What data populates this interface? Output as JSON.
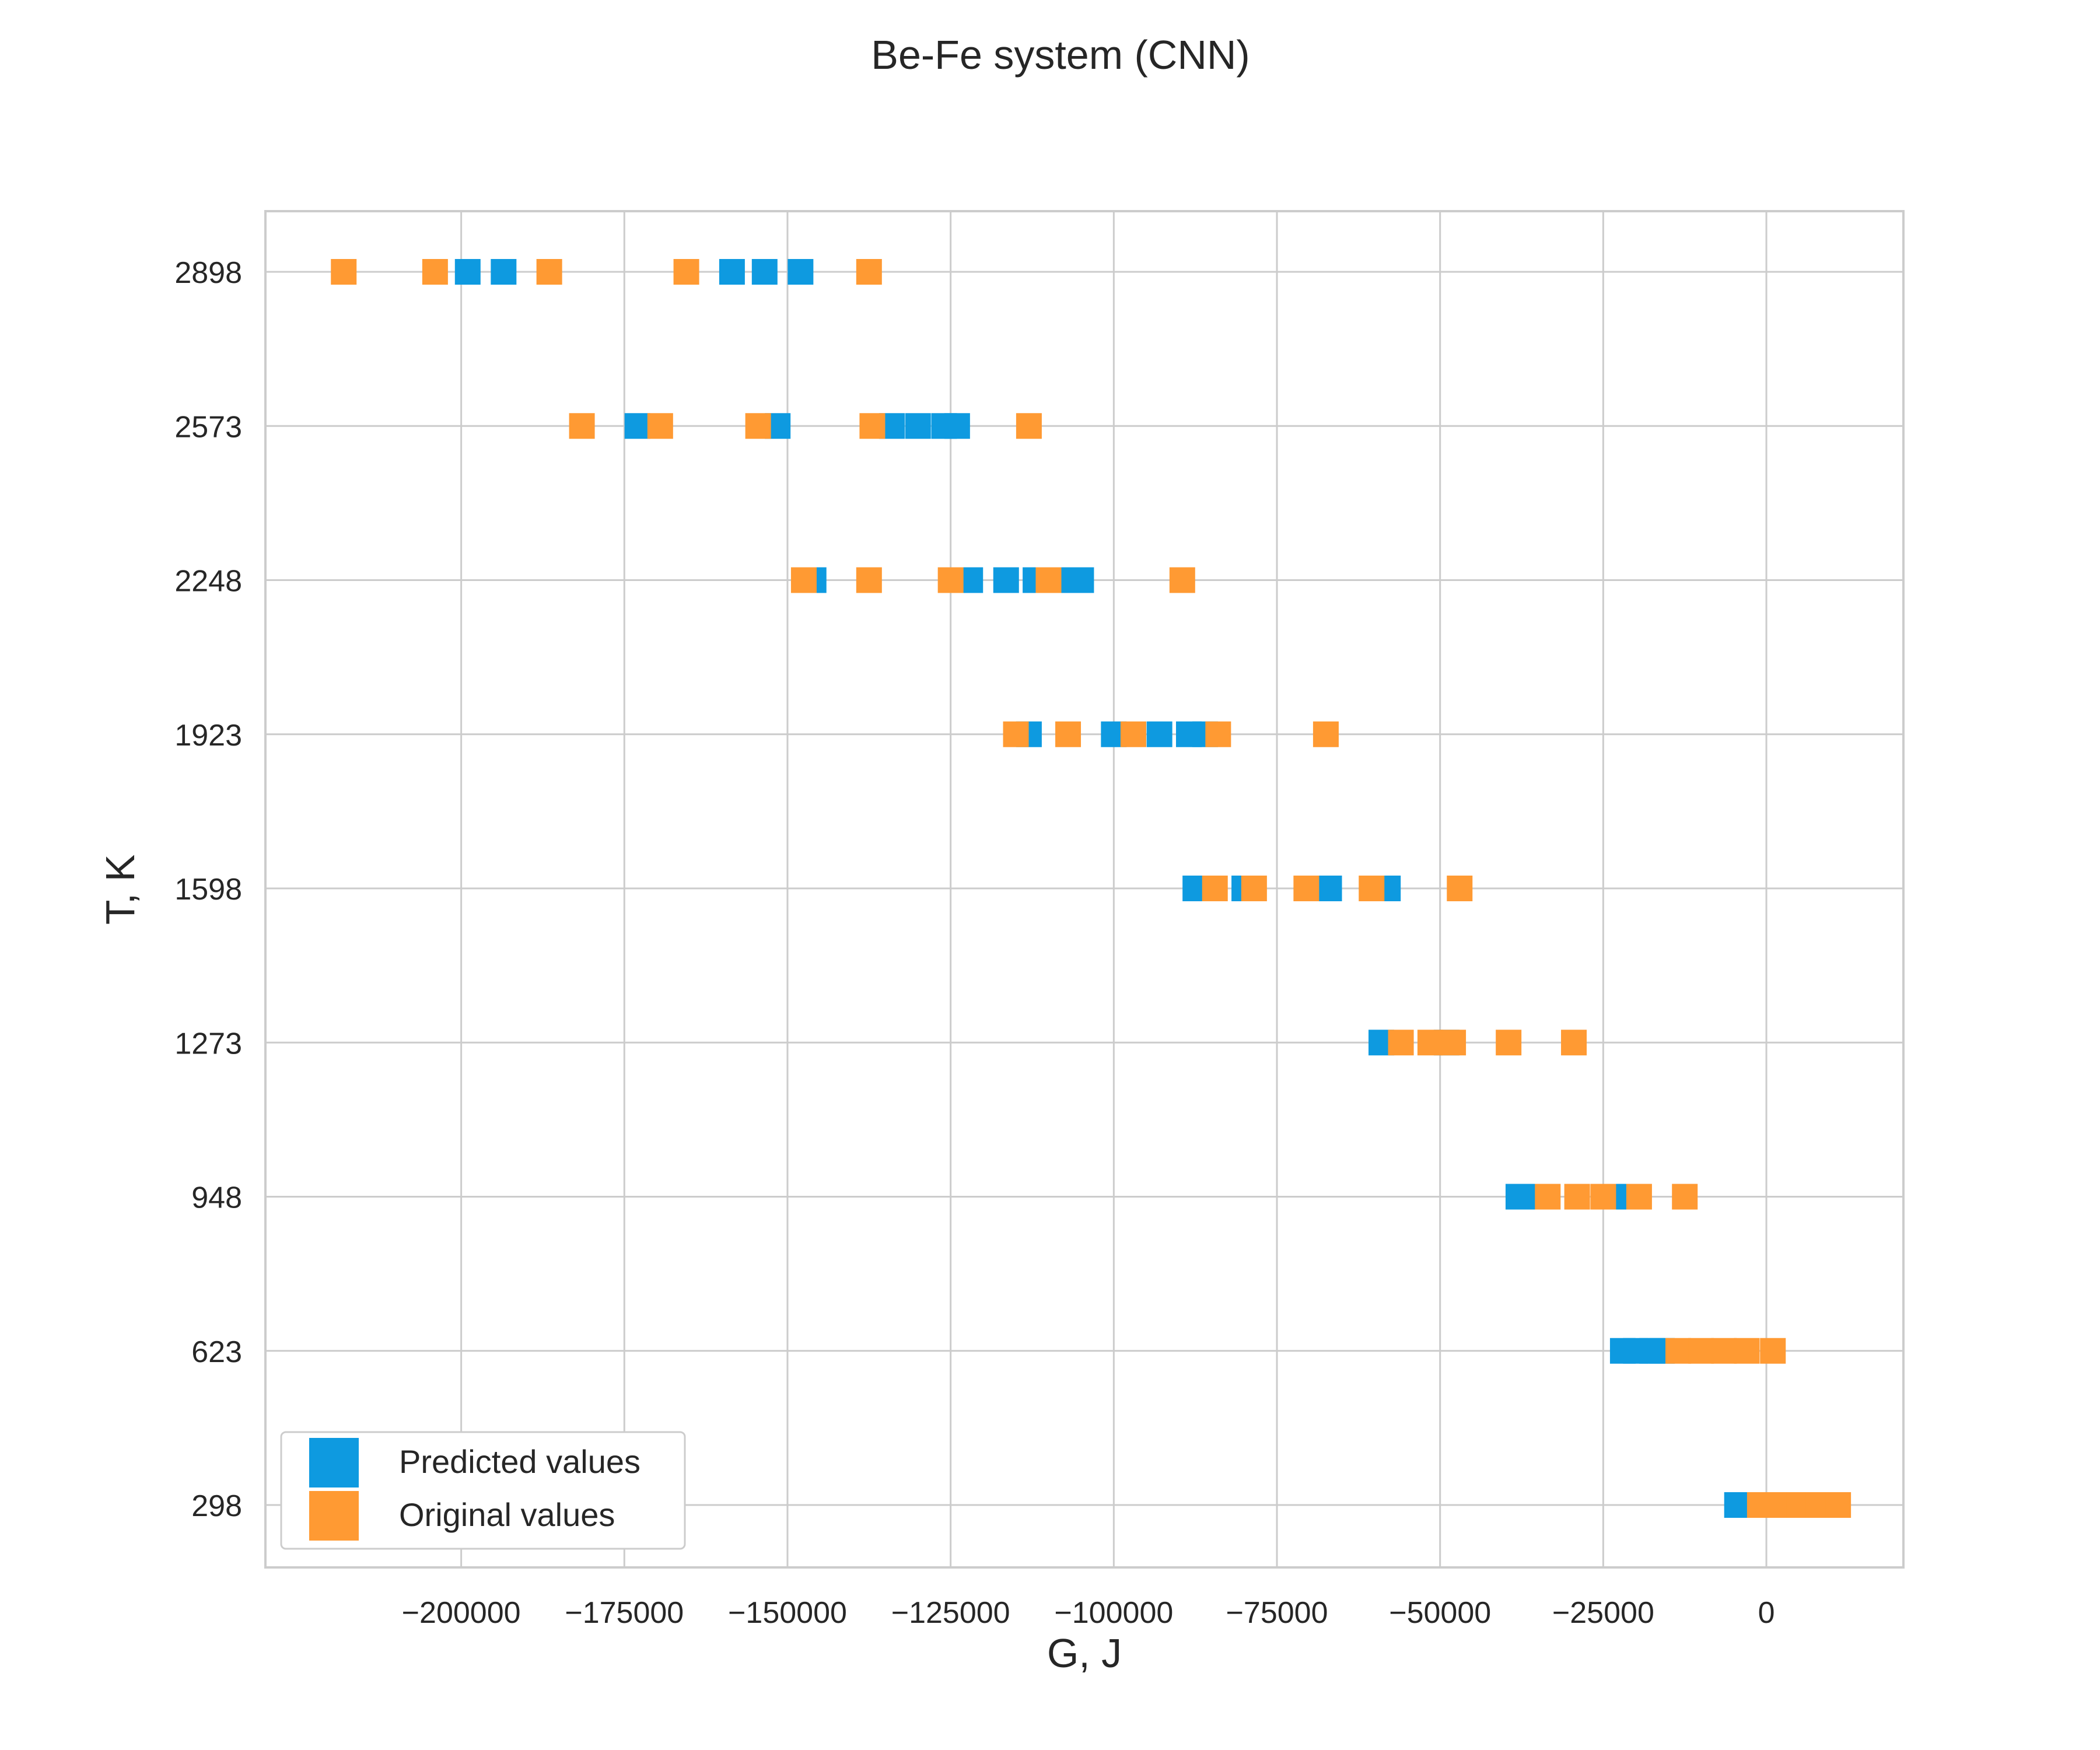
{
  "colors": {
    "predicted": "#0e9ae0",
    "original": "#ff9a33",
    "grid": "#cccccc",
    "frame": "#cccccc"
  },
  "chart_data": {
    "type": "scatter",
    "title": "Be-Fe system (CNN)",
    "xlabel": "G, J",
    "ylabel": "T, K",
    "xlim": [
      -230000,
      21000
    ],
    "xticks": [
      -200000,
      -175000,
      -150000,
      -125000,
      -100000,
      -75000,
      -50000,
      -25000,
      0
    ],
    "xtick_labels": [
      "−200000",
      "−175000",
      "−150000",
      "−125000",
      "−100000",
      "−75000",
      "−50000",
      "−25000",
      "0"
    ],
    "categories": [
      "298",
      "623",
      "948",
      "1273",
      "1598",
      "1923",
      "2248",
      "2573",
      "2898"
    ],
    "grid": true,
    "legend": "lower-left",
    "marker": "square",
    "series": [
      {
        "name": "Predicted values",
        "points": [
          {
            "T": "2898",
            "G": [
              -199000,
              -193500,
              -158500,
              -153500,
              -148000
            ]
          },
          {
            "T": "2573",
            "G": [
              -173000,
              -151500,
              -134000,
              -130000,
              -126000,
              -124000
            ]
          },
          {
            "T": "2248",
            "G": [
              -146000,
              -122000,
              -116500,
              -112000,
              -106500,
              -105000
            ]
          },
          {
            "T": "1923",
            "G": [
              -113000,
              -100000,
              -93000,
              -88500,
              -86000
            ]
          },
          {
            "T": "1598",
            "G": [
              -87500,
              -80000,
              -67000,
              -60000,
              -58000
            ]
          },
          {
            "T": "1273",
            "G": [
              -59000,
              -49000
            ]
          },
          {
            "T": "948",
            "G": [
              -38000,
              -36500,
              -24000,
              -22000
            ]
          },
          {
            "T": "623",
            "G": [
              -22000,
              -20000,
              -17500,
              -16000
            ]
          },
          {
            "T": "298",
            "G": [
              -4500,
              -3500
            ]
          }
        ]
      },
      {
        "name": "Original values",
        "points": [
          {
            "T": "2898",
            "G": [
              -218000,
              -204000,
              -186500,
              -165500,
              -137500
            ]
          },
          {
            "T": "2573",
            "G": [
              -181500,
              -169500,
              -154500,
              -137000,
              -113000
            ]
          },
          {
            "T": "2248",
            "G": [
              -147500,
              -137500,
              -125000,
              -110000,
              -89500
            ]
          },
          {
            "T": "1923",
            "G": [
              -115000,
              -107000,
              -97000,
              -84000,
              -67500
            ]
          },
          {
            "T": "1598",
            "G": [
              -84500,
              -78500,
              -70500,
              -60500,
              -47000
            ]
          },
          {
            "T": "1273",
            "G": [
              -56000,
              -51500,
              -48000,
              -39500,
              -29500
            ]
          },
          {
            "T": "948",
            "G": [
              -33500,
              -29000,
              -25000,
              -19500,
              -12500
            ]
          },
          {
            "T": "623",
            "G": [
              -13500,
              -10000,
              -6500,
              -3000,
              1000
            ]
          },
          {
            "T": "298",
            "G": [
              -1000,
              2000,
              5000,
              8000,
              11000
            ]
          }
        ]
      }
    ]
  }
}
